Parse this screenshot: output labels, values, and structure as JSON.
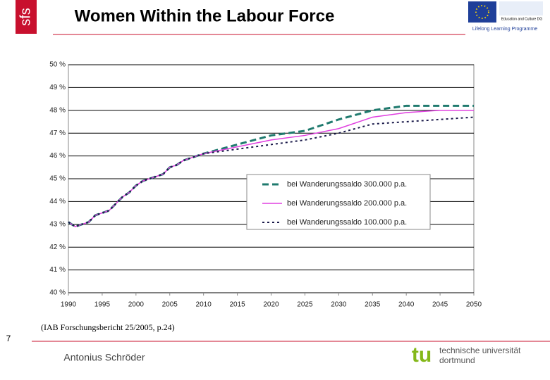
{
  "header": {
    "logo": "sfs",
    "title": "Women Within the Labour Force",
    "partner": [
      "Education and Culture DG",
      "Lifelong Learning Programme"
    ]
  },
  "source": "(IAB Forschungsbericht 25/2005, p.24)",
  "page_number": "7",
  "footer": {
    "author": "Antonius Schröder",
    "university": [
      "technische universität",
      "dortmund"
    ]
  },
  "chart_data": {
    "type": "line",
    "x": [
      1990,
      1991,
      1992,
      1993,
      1994,
      1995,
      1996,
      1997,
      1998,
      1999,
      2000,
      2001,
      2002,
      2003,
      2004,
      2005,
      2006,
      2007,
      2008,
      2009,
      2010,
      2015,
      2020,
      2025,
      2030,
      2035,
      2040,
      2045,
      2050
    ],
    "series": [
      {
        "name": "bei Wanderungssaldo 300.000 p.a.",
        "color": "#1f7a6e",
        "style": "dashed",
        "values": [
          43.1,
          42.9,
          43.0,
          43.1,
          43.4,
          43.5,
          43.6,
          43.9,
          44.2,
          44.4,
          44.7,
          44.9,
          45.0,
          45.1,
          45.2,
          45.5,
          45.6,
          45.8,
          45.9,
          46.0,
          46.1,
          46.5,
          46.9,
          47.1,
          47.6,
          48.0,
          48.2,
          48.2,
          48.2
        ]
      },
      {
        "name": "bei Wanderungssaldo 200.000 p.a.",
        "color": "#e040e0",
        "style": "solid",
        "values": [
          43.1,
          42.9,
          43.0,
          43.1,
          43.4,
          43.5,
          43.6,
          43.9,
          44.2,
          44.4,
          44.7,
          44.9,
          45.0,
          45.1,
          45.2,
          45.5,
          45.6,
          45.8,
          45.9,
          46.0,
          46.1,
          46.4,
          46.7,
          46.9,
          47.2,
          47.7,
          47.9,
          48.0,
          48.0
        ]
      },
      {
        "name": "bei Wanderungssaldo 100.000 p.a.",
        "color": "#1a1a4a",
        "style": "dotted",
        "values": [
          43.1,
          42.9,
          43.0,
          43.1,
          43.4,
          43.5,
          43.6,
          43.9,
          44.2,
          44.4,
          44.7,
          44.9,
          45.0,
          45.1,
          45.2,
          45.5,
          45.6,
          45.8,
          45.9,
          46.0,
          46.1,
          46.3,
          46.5,
          46.7,
          47.0,
          47.4,
          47.5,
          47.6,
          47.7
        ]
      }
    ],
    "xlim": [
      1990,
      2050
    ],
    "xticks": [
      1990,
      1995,
      2000,
      2005,
      2010,
      2015,
      2020,
      2025,
      2030,
      2035,
      2040,
      2045,
      2050
    ],
    "ylim": [
      40,
      50
    ],
    "yticks": [
      {
        "value": 40,
        "label": "40 %"
      },
      {
        "value": 41,
        "label": "41 %"
      },
      {
        "value": 42,
        "label": "42 %"
      },
      {
        "value": 43,
        "label": "43 %"
      },
      {
        "value": 44,
        "label": "44 %"
      },
      {
        "value": 45,
        "label": "45 %"
      },
      {
        "value": 46,
        "label": "46 %"
      },
      {
        "value": 47,
        "label": "47 %"
      },
      {
        "value": 48,
        "label": "48 %"
      },
      {
        "value": 49,
        "label": "49 %"
      },
      {
        "value": 50,
        "label": "50 %"
      }
    ],
    "grid": true
  }
}
